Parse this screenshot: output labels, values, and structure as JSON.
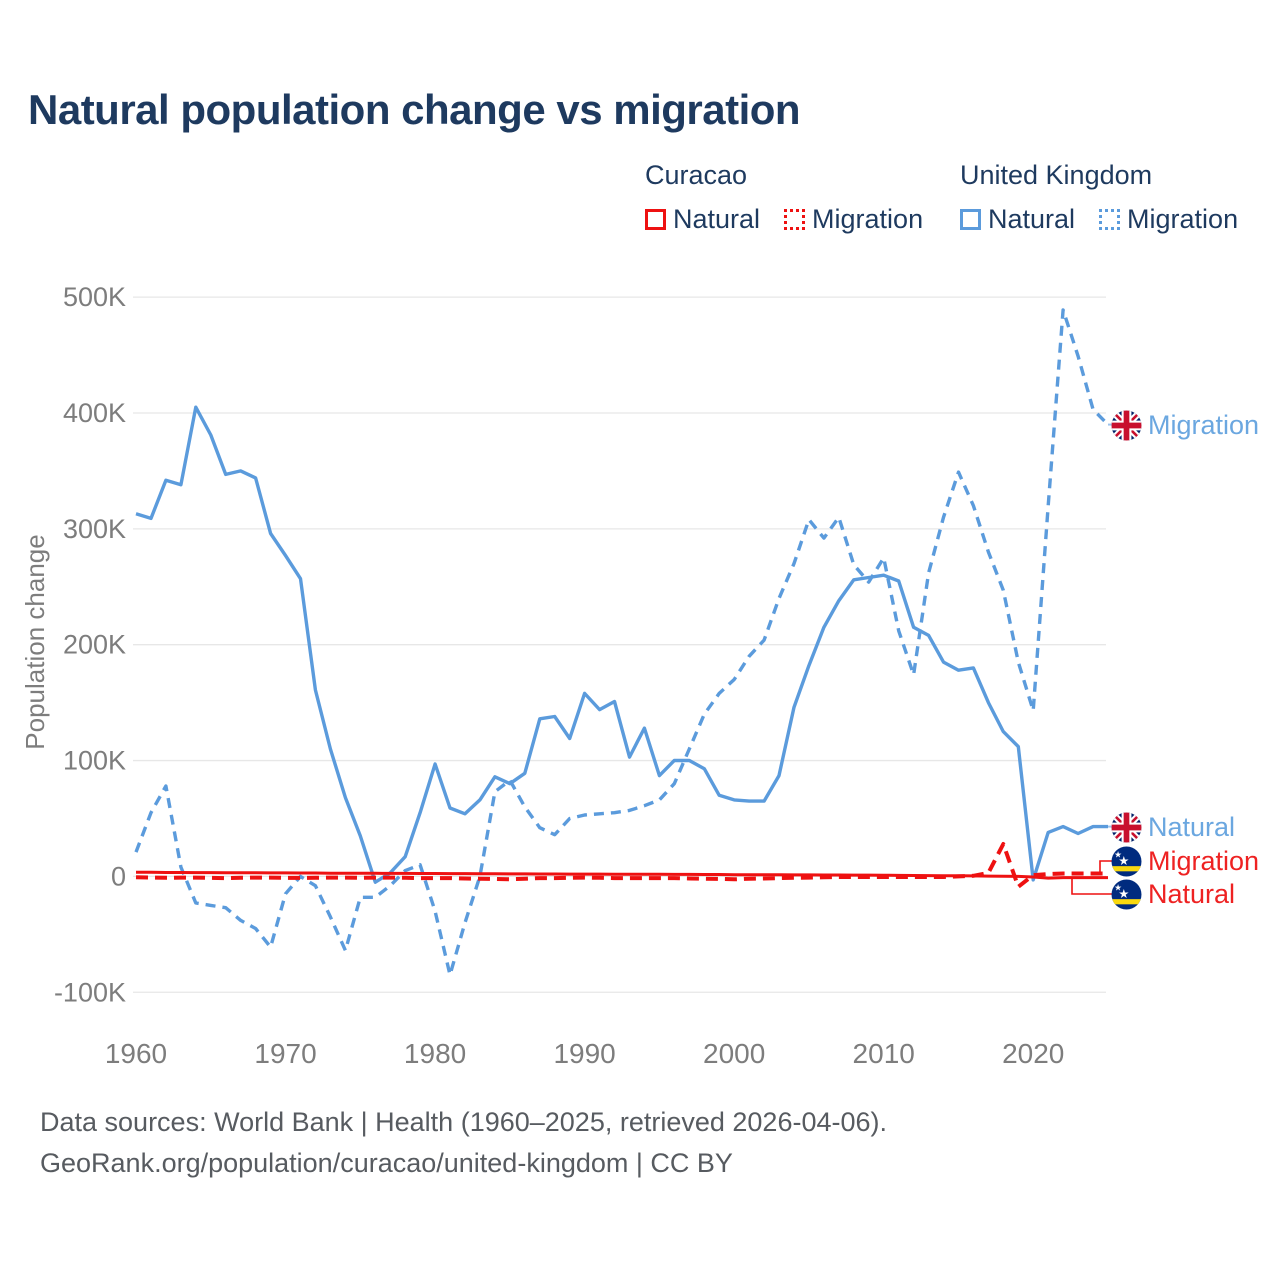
{
  "title": "Natural population change vs migration",
  "legend": {
    "groups": [
      {
        "country": "Curacao",
        "color": "#EE1111",
        "items": [
          {
            "label": "Natural",
            "line_style": "solid"
          },
          {
            "label": "Migration",
            "line_style": "dotted"
          }
        ]
      },
      {
        "country": "United Kingdom",
        "color": "#5B9BDC",
        "items": [
          {
            "label": "Natural",
            "line_style": "solid"
          },
          {
            "label": "Migration",
            "line_style": "dotted"
          }
        ]
      }
    ]
  },
  "y_axis": {
    "title": "Population change",
    "ticks": [
      {
        "label": "500K",
        "value": 500
      },
      {
        "label": "400K",
        "value": 400
      },
      {
        "label": "300K",
        "value": 300
      },
      {
        "label": "200K",
        "value": 200
      },
      {
        "label": "100K",
        "value": 100
      },
      {
        "label": "0",
        "value": 0
      },
      {
        "label": "-100K",
        "value": -100
      }
    ]
  },
  "x_axis": {
    "ticks": [
      {
        "label": "1960",
        "value": 1960
      },
      {
        "label": "1970",
        "value": 1970
      },
      {
        "label": "1980",
        "value": 1980
      },
      {
        "label": "1990",
        "value": 1990
      },
      {
        "label": "2000",
        "value": 2000
      },
      {
        "label": "2010",
        "value": 2010
      },
      {
        "label": "2020",
        "value": 2020
      }
    ]
  },
  "series_end_labels": [
    {
      "text": "Migration",
      "country": "United Kingdom",
      "icon": "uk-flag-icon",
      "color": "#6BA7E0"
    },
    {
      "text": "Natural",
      "country": "United Kingdom",
      "icon": "uk-flag-icon",
      "color": "#6BA7E0"
    },
    {
      "text": "Migration",
      "country": "Curacao",
      "icon": "curacao-flag-icon",
      "color": "#EE2222"
    },
    {
      "text": "Natural",
      "country": "Curacao",
      "icon": "curacao-flag-icon",
      "color": "#EE2222"
    }
  ],
  "footer": {
    "line1": "Data sources: World Bank | Health (1960–2025, retrieved 2026-04-06).",
    "line2": "GeoRank.org/population/curacao/united-kingdom | CC BY"
  },
  "chart_data": {
    "type": "line",
    "title": "Natural population change vs migration",
    "ylabel": "Population change",
    "unit": "thousands",
    "ylim": [
      -100,
      500
    ],
    "grid": true,
    "legend_position": "top-right",
    "x": [
      1960,
      1961,
      1962,
      1963,
      1964,
      1965,
      1966,
      1967,
      1968,
      1969,
      1970,
      1971,
      1972,
      1973,
      1974,
      1975,
      1976,
      1977,
      1978,
      1979,
      1980,
      1981,
      1982,
      1983,
      1984,
      1985,
      1986,
      1987,
      1988,
      1989,
      1990,
      1991,
      1992,
      1993,
      1994,
      1995,
      1996,
      1997,
      1998,
      1999,
      2000,
      2001,
      2002,
      2003,
      2004,
      2005,
      2006,
      2007,
      2008,
      2009,
      2010,
      2011,
      2012,
      2013,
      2014,
      2015,
      2016,
      2017,
      2018,
      2019,
      2020,
      2021,
      2022,
      2023,
      2024,
      2025
    ],
    "series": [
      {
        "name": "United Kingdom — Natural",
        "country": "United Kingdom",
        "metric": "Natural",
        "style": "solid",
        "color": "#5B9BDC",
        "values": [
          313,
          309,
          342,
          338,
          405,
          381,
          347,
          350,
          344,
          296,
          277,
          257,
          161,
          110,
          68,
          35,
          -5,
          3,
          17,
          55,
          97,
          59,
          54,
          66,
          86,
          80,
          89,
          136,
          138,
          119,
          158,
          144,
          151,
          103,
          128,
          87,
          100,
          100,
          93,
          70,
          66,
          65,
          65,
          87,
          146,
          182,
          215,
          238,
          256,
          258,
          260,
          255,
          215,
          208,
          185,
          178,
          180,
          150,
          125,
          112,
          -3,
          38,
          43,
          37,
          43,
          43
        ]
      },
      {
        "name": "United Kingdom — Migration",
        "country": "United Kingdom",
        "metric": "Migration",
        "style": "dashed",
        "color": "#5B9BDC",
        "values": [
          21,
          55,
          78,
          8,
          -23,
          -25,
          -27,
          -38,
          -45,
          -61,
          -15,
          0,
          -8,
          -35,
          -64,
          -18,
          -18,
          -8,
          5,
          10,
          -30,
          -85,
          -40,
          0,
          73,
          83,
          60,
          42,
          36,
          50,
          53,
          54,
          55,
          57,
          61,
          66,
          80,
          110,
          140,
          158,
          170,
          190,
          204,
          240,
          270,
          308,
          292,
          310,
          269,
          254,
          275,
          212,
          174,
          262,
          310,
          349,
          320,
          280,
          247,
          185,
          143,
          320,
          489,
          449,
          403,
          390
        ]
      },
      {
        "name": "Curacao — Natural",
        "country": "Curacao",
        "metric": "Natural",
        "style": "solid",
        "color": "#EE1111",
        "values": [
          3.5,
          3.5,
          3.4,
          3.4,
          3.3,
          3.3,
          3.2,
          3.2,
          3.1,
          3.0,
          3.0,
          2.9,
          2.9,
          2.8,
          2.8,
          2.7,
          2.7,
          2.6,
          2.6,
          2.5,
          2.5,
          2.4,
          2.4,
          2.3,
          2.3,
          2.2,
          2.2,
          2.1,
          2.1,
          2.0,
          2.0,
          2.0,
          1.9,
          1.9,
          1.8,
          1.8,
          1.7,
          1.7,
          1.6,
          1.6,
          1.5,
          1.5,
          1.4,
          1.4,
          1.3,
          1.3,
          1.2,
          1.2,
          1.1,
          1.1,
          1.0,
          0.9,
          0.8,
          0.7,
          0.6,
          0.5,
          0.4,
          0.3,
          0.2,
          0.0,
          -0.5,
          -1.5,
          -1.0,
          -1.0,
          -1.0,
          -1.0
        ]
      },
      {
        "name": "Curacao — Migration",
        "country": "Curacao",
        "metric": "Migration",
        "style": "dashed",
        "color": "#EE1111",
        "values": [
          -0.8,
          -1.0,
          -1.2,
          -1.0,
          -1.0,
          -1.2,
          -1.5,
          -1.2,
          -1.0,
          -1.0,
          -1.2,
          -1.3,
          -1.2,
          -1.0,
          -1.0,
          -1.2,
          -1.0,
          -1.0,
          -1.2,
          -1.5,
          -1.5,
          -1.5,
          -1.8,
          -2.0,
          -2.2,
          -2.5,
          -2.0,
          -1.5,
          -1.5,
          -1.2,
          -1.0,
          -1.2,
          -1.5,
          -1.5,
          -1.5,
          -1.5,
          -1.5,
          -1.8,
          -2.0,
          -2.2,
          -2.5,
          -2.0,
          -1.8,
          -1.5,
          -1.2,
          -1.0,
          -0.8,
          -0.5,
          -0.5,
          -0.5,
          -0.5,
          -0.5,
          -0.5,
          -0.5,
          -0.5,
          0.0,
          0.5,
          3.0,
          28.0,
          -9.0,
          1.0,
          2.0,
          2.5,
          2.5,
          2.5,
          2.5
        ]
      }
    ]
  }
}
